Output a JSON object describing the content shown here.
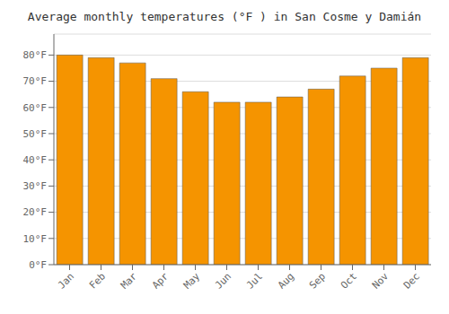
{
  "chart_data": {
    "type": "bar",
    "title": "Average monthly temperatures (°F ) in San Cosme y Damián",
    "categories": [
      "Jan",
      "Feb",
      "Mar",
      "Apr",
      "May",
      "Jun",
      "Jul",
      "Aug",
      "Sep",
      "Oct",
      "Nov",
      "Dec"
    ],
    "values": [
      80,
      79,
      77,
      71,
      66,
      62,
      62,
      64,
      67,
      72,
      75,
      79
    ],
    "color": "#F59400",
    "ylim": [
      0,
      88
    ],
    "yticks": [
      {
        "value": 0,
        "label": "0°F"
      },
      {
        "value": 10,
        "label": "10°F"
      },
      {
        "value": 20,
        "label": "20°F"
      },
      {
        "value": 30,
        "label": "30°F"
      },
      {
        "value": 40,
        "label": "40°F"
      },
      {
        "value": 50,
        "label": "50°F"
      },
      {
        "value": 60,
        "label": "60°F"
      },
      {
        "value": 70,
        "label": "70°F"
      },
      {
        "value": 80,
        "label": "80°F"
      }
    ],
    "grid": true
  }
}
